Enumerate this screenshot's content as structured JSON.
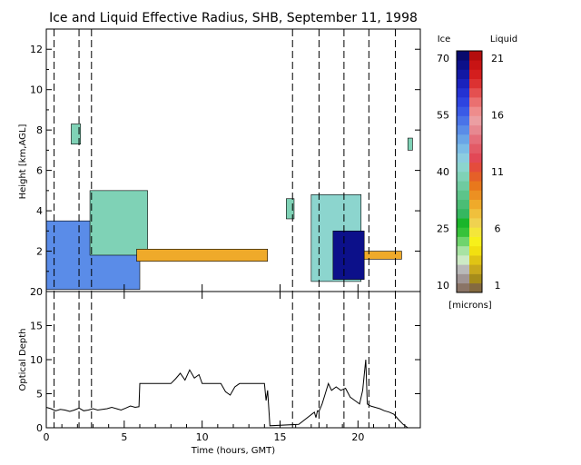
{
  "chart_data": [
    {
      "type": "heatmap",
      "title": "Ice and Liquid Effective Radius, SHB, September 11, 1998",
      "xlabel": "",
      "ylabel": "Height [km,AGL]",
      "xlim": [
        0,
        24
      ],
      "ylim": [
        0,
        13
      ],
      "xticks": [
        "0",
        "5",
        "10",
        "15",
        "20"
      ],
      "xtick_values": [
        0,
        5,
        10,
        15,
        20
      ],
      "yticks": [
        "2",
        "4",
        "6",
        "8",
        "10",
        "12"
      ],
      "ytick_values": [
        2,
        4,
        6,
        8,
        10,
        12
      ],
      "grid": false,
      "dashed_times": [
        0.5,
        2.1,
        2.9,
        15.8,
        17.5,
        19.1,
        20.7,
        22.4
      ],
      "regions": [
        {
          "phase": "ice",
          "t0": 0.0,
          "t1": 6.0,
          "z0": 0.1,
          "z1": 3.5,
          "radius_um": 50
        },
        {
          "phase": "ice",
          "t0": 2.8,
          "t1": 6.5,
          "z0": 1.8,
          "z1": 5.0,
          "radius_um": 38
        },
        {
          "phase": "ice",
          "t0": 1.6,
          "t1": 2.2,
          "z0": 7.3,
          "z1": 8.3,
          "radius_um": 38
        },
        {
          "phase": "ice",
          "t0": 15.4,
          "t1": 15.9,
          "z0": 3.6,
          "z1": 4.6,
          "radius_um": 38
        },
        {
          "phase": "ice",
          "t0": 17.0,
          "t1": 20.2,
          "z0": 0.5,
          "z1": 4.8,
          "radius_um": 40
        },
        {
          "phase": "ice",
          "t0": 18.4,
          "t1": 20.4,
          "z0": 0.6,
          "z1": 3.0,
          "radius_um": 68
        },
        {
          "phase": "ice",
          "t0": 23.2,
          "t1": 23.5,
          "z0": 7.0,
          "z1": 7.6,
          "radius_um": 38
        },
        {
          "phase": "liquid",
          "t0": 5.8,
          "t1": 14.2,
          "z0": 1.5,
          "z1": 2.1,
          "radius_um": 8
        },
        {
          "phase": "liquid",
          "t0": 20.4,
          "t1": 22.8,
          "z0": 1.6,
          "z1": 2.0,
          "radius_um": 8
        }
      ]
    },
    {
      "type": "line",
      "title": "",
      "xlabel": "Time (hours, GMT)",
      "ylabel": "Optical Depth",
      "xlim": [
        0,
        24
      ],
      "ylim": [
        0,
        20
      ],
      "xticks": [
        "0",
        "5",
        "10",
        "15",
        "20"
      ],
      "xtick_values": [
        0,
        5,
        10,
        15,
        20
      ],
      "yticks": [
        "0",
        "5",
        "10",
        "15",
        "20"
      ],
      "ytick_values": [
        0,
        5,
        10,
        15,
        20
      ],
      "grid": false,
      "series": [
        {
          "x": [
            0.0,
            0.3,
            0.6,
            0.9,
            1.2,
            1.5,
            1.8,
            2.1,
            2.4,
            2.7,
            3.0,
            3.3,
            3.6,
            3.9,
            4.2,
            4.5,
            4.8,
            5.1,
            5.4,
            5.7,
            5.95,
            6.0,
            8.0,
            8.3,
            8.6,
            8.9,
            9.2,
            9.5,
            9.8,
            10.0,
            11.2,
            11.5,
            11.8,
            12.1,
            12.4,
            12.7,
            13.0,
            13.5,
            14.0,
            14.1,
            14.2,
            14.3,
            14.35,
            16.2,
            17.2,
            17.3,
            17.4,
            17.5,
            17.7,
            17.9,
            18.1,
            18.3,
            18.6,
            18.9,
            19.2,
            19.5,
            19.8,
            20.1,
            20.3,
            20.5,
            20.6,
            20.8,
            21.1,
            21.4,
            21.7,
            22.0,
            22.3,
            22.6,
            22.9,
            23.2
          ],
          "y": [
            3.0,
            2.8,
            2.5,
            2.7,
            2.6,
            2.4,
            2.6,
            2.9,
            2.5,
            2.6,
            2.8,
            2.6,
            2.7,
            2.8,
            3.0,
            2.8,
            2.6,
            2.9,
            3.2,
            3.0,
            3.1,
            6.5,
            6.5,
            7.2,
            8.0,
            7.0,
            8.5,
            7.3,
            7.8,
            6.5,
            6.5,
            5.3,
            4.8,
            6.0,
            6.5,
            6.5,
            6.5,
            6.5,
            6.5,
            4.0,
            5.5,
            2.0,
            0.3,
            0.5,
            2.3,
            1.5,
            2.5,
            2.4,
            3.5,
            5.0,
            6.5,
            5.5,
            6.0,
            5.5,
            5.8,
            4.5,
            4.0,
            3.5,
            5.5,
            10.0,
            3.5,
            3.2,
            3.0,
            2.8,
            2.5,
            2.3,
            2.0,
            1.2,
            0.5,
            0.0
          ]
        }
      ]
    }
  ],
  "colorbar": {
    "ice_label": "Ice",
    "liquid_label": "Liquid",
    "unit_label": "[microns]",
    "ice_ticks": [
      "70",
      "55",
      "40",
      "25",
      "10"
    ],
    "liquid_ticks": [
      "21",
      "16",
      "11",
      "6",
      "1"
    ],
    "ice_colors": [
      "#8a7466",
      "#a09595",
      "#b9b9b9",
      "#cdeac5",
      "#a8e3a3",
      "#6fd46d",
      "#36c23a",
      "#1ab52a",
      "#36b760",
      "#4bbd75",
      "#5dc48a",
      "#6fcba0",
      "#7fd2b6",
      "#8cd5ce",
      "#8ccde0",
      "#7cbce6",
      "#6aa5e7",
      "#5a8ce8",
      "#4a73e8",
      "#3a5ae6",
      "#2e44e0",
      "#2432d2",
      "#1a22bd",
      "#1218a4",
      "#0c108a",
      "#080a6d"
    ],
    "liquid_colors": [
      "#846a40",
      "#a68c1a",
      "#c8a81c",
      "#e0c414",
      "#f2e010",
      "#f7f01a",
      "#f4e63a",
      "#f0d250",
      "#f0c03c",
      "#efaa2a",
      "#ec9022",
      "#e8781c",
      "#e56028",
      "#e44c3c",
      "#e24856",
      "#e35a66",
      "#e56e7a",
      "#e78890",
      "#eb9ea2",
      "#ee8c8c",
      "#ea7070",
      "#e45050",
      "#dc3232",
      "#d41e1e",
      "#c81414",
      "#b40e0e"
    ]
  }
}
